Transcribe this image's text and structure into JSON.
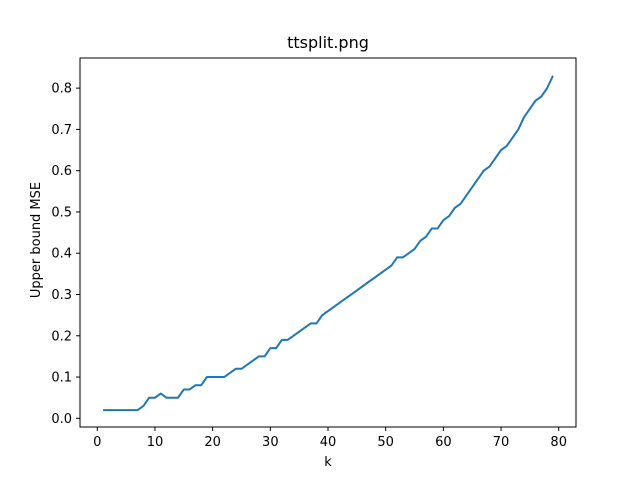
{
  "chart_data": {
    "type": "line",
    "title": "ttsplit.png",
    "xlabel": "k",
    "ylabel": "Upper bound MSE",
    "xlim": [
      -3,
      83
    ],
    "ylim": [
      -0.021,
      0.873
    ],
    "xticks": [
      0,
      10,
      20,
      30,
      40,
      50,
      60,
      70,
      80
    ],
    "xtick_labels": [
      "0",
      "10",
      "20",
      "30",
      "40",
      "50",
      "60",
      "70",
      "80"
    ],
    "yticks": [
      0.0,
      0.1,
      0.2,
      0.3,
      0.4,
      0.5,
      0.6,
      0.7,
      0.8
    ],
    "ytick_labels": [
      "0.0",
      "0.1",
      "0.2",
      "0.3",
      "0.4",
      "0.5",
      "0.6",
      "0.7",
      "0.8"
    ],
    "grid": false,
    "line_color": "#1f77b4",
    "series": [
      {
        "x": [
          1,
          2,
          3,
          4,
          5,
          6,
          7,
          8,
          9,
          10,
          11,
          12,
          13,
          14,
          15,
          16,
          17,
          18,
          19,
          20,
          21,
          22,
          23,
          24,
          25,
          26,
          27,
          28,
          29,
          30,
          31,
          32,
          33,
          34,
          35,
          36,
          37,
          38,
          39,
          40,
          41,
          42,
          43,
          44,
          45,
          46,
          47,
          48,
          49,
          50,
          51,
          52,
          53,
          54,
          55,
          56,
          57,
          58,
          59,
          60,
          61,
          62,
          63,
          64,
          65,
          66,
          67,
          68,
          69,
          70,
          71,
          72,
          73,
          74,
          75,
          76,
          77,
          78,
          79
        ],
        "values": [
          0.02,
          0.02,
          0.02,
          0.02,
          0.02,
          0.02,
          0.02,
          0.03,
          0.05,
          0.05,
          0.06,
          0.05,
          0.05,
          0.05,
          0.07,
          0.07,
          0.08,
          0.08,
          0.1,
          0.1,
          0.1,
          0.1,
          0.11,
          0.12,
          0.12,
          0.13,
          0.14,
          0.15,
          0.15,
          0.17,
          0.17,
          0.19,
          0.19,
          0.2,
          0.21,
          0.22,
          0.23,
          0.23,
          0.25,
          0.26,
          0.27,
          0.28,
          0.29,
          0.3,
          0.31,
          0.32,
          0.33,
          0.34,
          0.35,
          0.36,
          0.37,
          0.39,
          0.39,
          0.4,
          0.41,
          0.43,
          0.44,
          0.46,
          0.46,
          0.48,
          0.49,
          0.51,
          0.52,
          0.54,
          0.56,
          0.58,
          0.6,
          0.61,
          0.63,
          0.65,
          0.66,
          0.68,
          0.7,
          0.73,
          0.75,
          0.77,
          0.78,
          0.8,
          0.83
        ]
      }
    ]
  }
}
